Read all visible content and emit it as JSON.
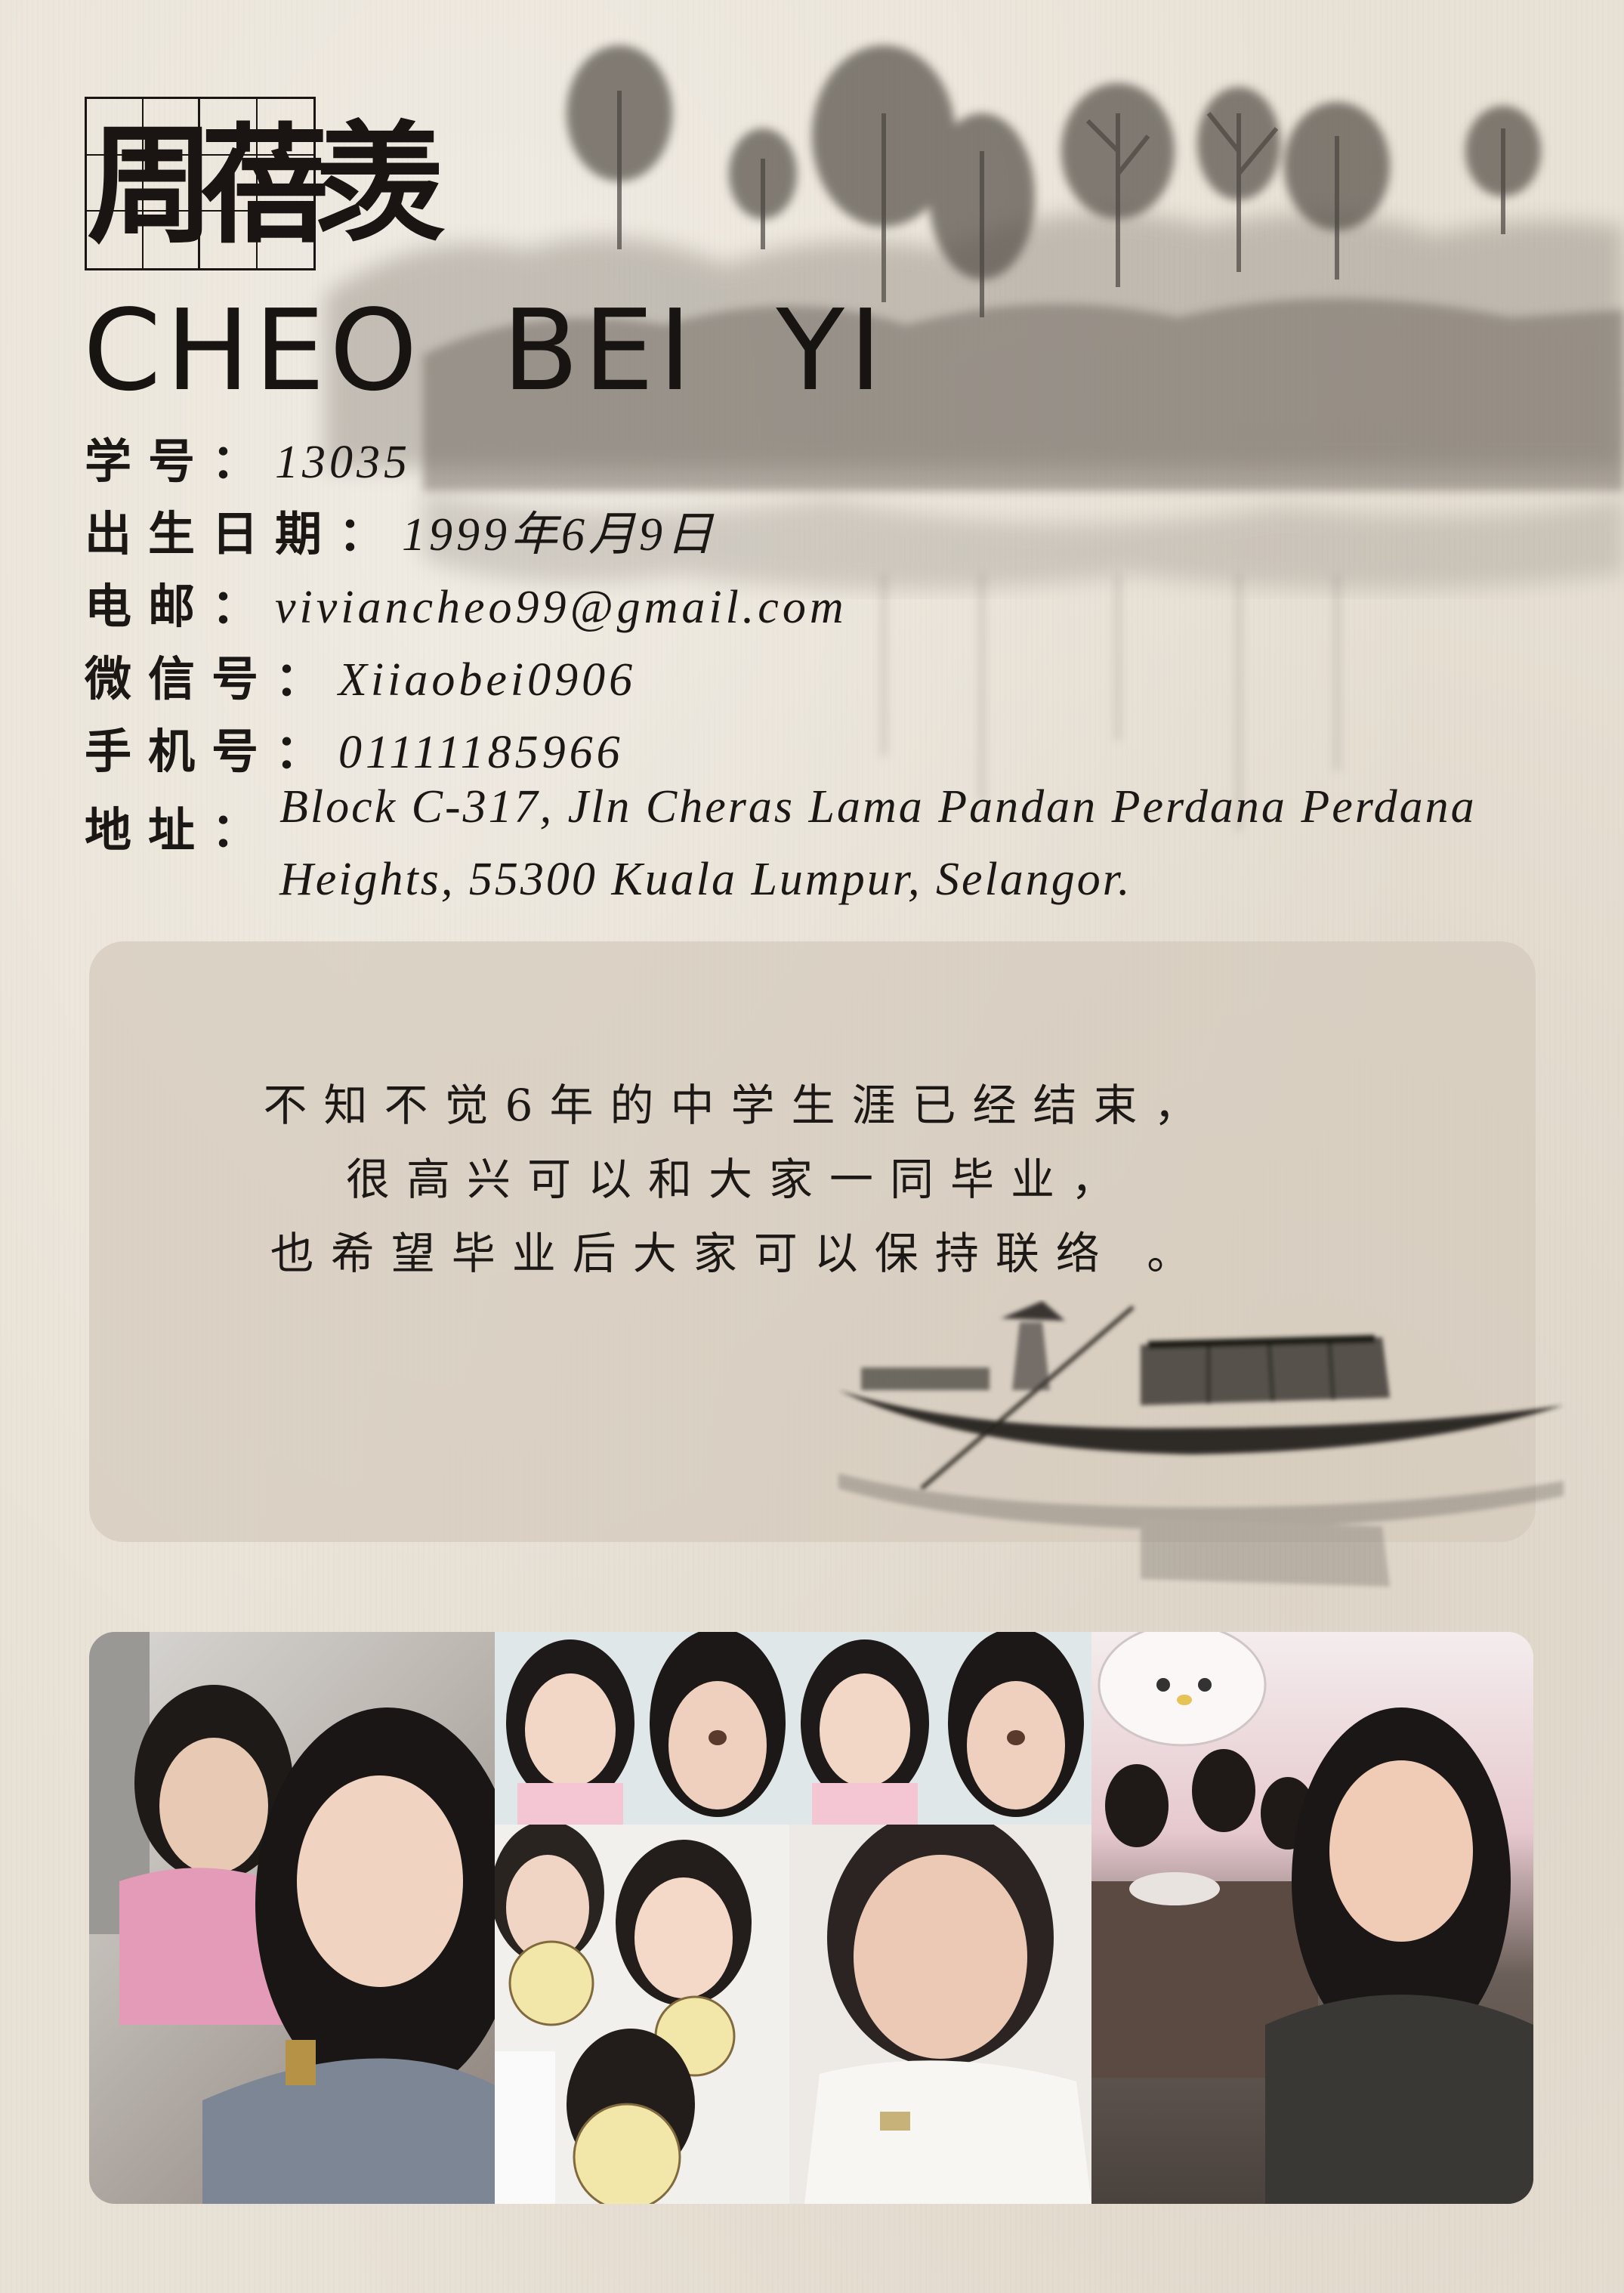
{
  "profile": {
    "name_chars": [
      "周",
      "蓓",
      "羡"
    ],
    "name_en": "CHEO  BEI  YI"
  },
  "info": [
    {
      "label": "学号：",
      "value": "13035"
    },
    {
      "label": "出生日期：",
      "value": "1999年6月9日"
    },
    {
      "label": "电邮：",
      "value": "viviancheo99@gmail.com"
    },
    {
      "label": "微信号：",
      "value": "Xiiaobei0906"
    },
    {
      "label": "手机号：",
      "value": "01111185966"
    }
  ],
  "address": {
    "label": "地址：",
    "line1": "Block C-317, Jln Cheras Lama Pandan Perdana Perdana",
    "line2": "Heights, 55300 Kuala Lumpur, Selangor."
  },
  "message": {
    "line1": "不知不觉6年的中学生涯已经结束，",
    "line2": "很高兴可以和大家一同毕业，",
    "line3": "也希望毕业后大家可以保持联络  。"
  },
  "colors": {
    "paper": "#e8e1d5",
    "ink": "#1b1714",
    "box": "#d4cbbc"
  }
}
